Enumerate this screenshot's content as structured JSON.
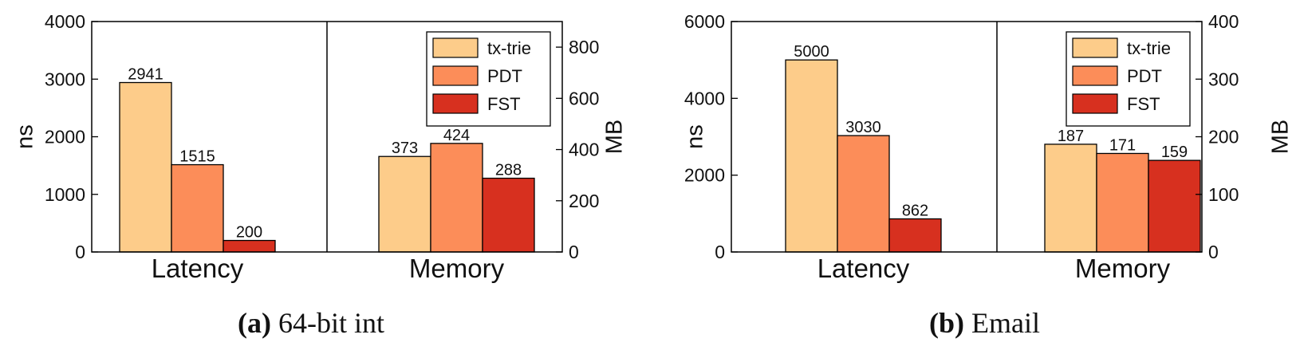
{
  "legend_labels": [
    "tx-trie",
    "PDT",
    "FST"
  ],
  "chart_data": [
    {
      "type": "bar",
      "caption_letter": "(a)",
      "caption_text": "64-bit int",
      "categories": [
        "Latency",
        "Memory"
      ],
      "left_axis": {
        "label": "ns",
        "ylim": [
          0,
          4000
        ],
        "ticks": [
          "0",
          "1000",
          "2000",
          "3000",
          "4000"
        ]
      },
      "right_axis": {
        "label": "MB",
        "ylim": [
          0,
          900
        ],
        "ticks": [
          "0",
          "200",
          "400",
          "600",
          "800"
        ]
      },
      "series": [
        {
          "name": "tx-trie",
          "color": "#fdcc8a",
          "values": [
            2941,
            373
          ],
          "labels": [
            "2941",
            "373"
          ]
        },
        {
          "name": "PDT",
          "color": "#fc8d59",
          "values": [
            1515,
            424
          ],
          "labels": [
            "1515",
            "424"
          ]
        },
        {
          "name": "FST",
          "color": "#d7301f",
          "values": [
            200,
            288
          ],
          "labels": [
            "200",
            "288"
          ]
        }
      ],
      "legend_position": "top-right",
      "grid": false
    },
    {
      "type": "bar",
      "caption_letter": "(b)",
      "caption_text": "Email",
      "categories": [
        "Latency",
        "Memory"
      ],
      "left_axis": {
        "label": "ns",
        "ylim": [
          0,
          6000
        ],
        "ticks": [
          "0",
          "2000",
          "4000",
          "6000"
        ]
      },
      "right_axis": {
        "label": "MB",
        "ylim": [
          0,
          400
        ],
        "ticks": [
          "0",
          "100",
          "200",
          "300",
          "400"
        ]
      },
      "series": [
        {
          "name": "tx-trie",
          "color": "#fdcc8a",
          "values": [
            5000,
            187
          ],
          "labels": [
            "5000",
            "187"
          ]
        },
        {
          "name": "PDT",
          "color": "#fc8d59",
          "values": [
            3030,
            171
          ],
          "labels": [
            "3030",
            "171"
          ]
        },
        {
          "name": "FST",
          "color": "#d7301f",
          "values": [
            862,
            159
          ],
          "labels": [
            "862",
            "159"
          ]
        }
      ],
      "legend_position": "top-right",
      "grid": false
    }
  ]
}
